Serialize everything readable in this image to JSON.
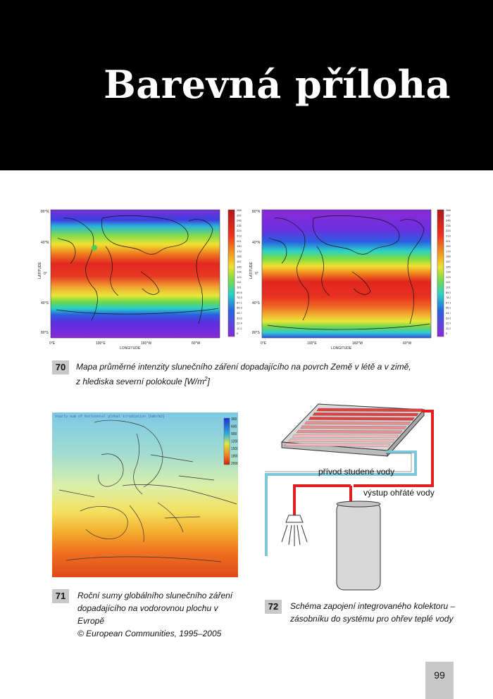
{
  "header": {
    "title": "Barevná příloha"
  },
  "figure70": {
    "number": "70",
    "caption_line1": "Mapa průměrné intenzity slunečního záření dopadajícího na povrch Země v létě a v zimě,",
    "caption_line2": "z hlediska severní polokoule [W/m",
    "caption_sup": "2",
    "caption_end": "]",
    "map_left": {
      "ylabel": "LATITUDE",
      "xlabel": "LONGITUDE",
      "yticks": [
        "80°N",
        "40°N",
        "0°",
        "40°S",
        "80°S"
      ],
      "xticks": [
        "0°E",
        "100°E",
        "160°W",
        "60°W"
      ]
    },
    "map_right": {
      "ylabel": "LATITUDE",
      "xlabel": "LONGITUDE",
      "yticks": [
        "80°N",
        "40°N",
        "0°",
        "40°S",
        "80°S"
      ],
      "xticks": [
        "0°E",
        "100°E",
        "160°W",
        "60°W"
      ]
    },
    "colorbar": [
      "268",
      "257",
      "246",
      "235",
      "224",
      "213",
      "201",
      "190",
      "179",
      "168",
      "157",
      "145",
      "134",
      "123",
      "112",
      "101",
      "89.5",
      "78.3",
      "67.1",
      "55.9",
      "44.7",
      "33.6",
      "22.4",
      "11.2",
      "0"
    ]
  },
  "figure71": {
    "number": "71",
    "map_title": "Yearly sum of horizontal global irradiation [kWh/m2]",
    "legend": [
      "300",
      "600",
      "900",
      "1200",
      "1500",
      "1800",
      "2000"
    ],
    "caption_line1": "Roční sumy globálního slunečního záření",
    "caption_line2": "dopadajícího na vodorovnou plochu v Evropě",
    "caption_line3": "© European Communities, 1995–2005"
  },
  "figure72": {
    "number": "72",
    "label_cold": "přívod studené vody",
    "label_hot": "výstup ohřáté vody",
    "caption_line1": "Schéma zapojení integrovaného kolektoru –",
    "caption_line2": "zásobníku do systému pro ohřev teplé vody"
  },
  "page_number": "99"
}
